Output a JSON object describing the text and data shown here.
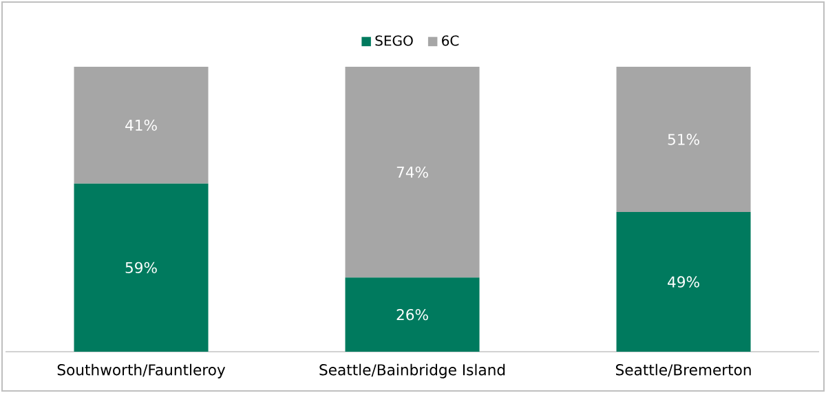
{
  "chart_data": {
    "type": "bar",
    "stacked": true,
    "legend": "top",
    "categories": [
      "Southworth/Fauntleroy",
      "Seattle/Bainbridge Island",
      "Seattle/Bremerton"
    ],
    "series": [
      {
        "name": "SEGO",
        "color": "#007a5e",
        "values": [
          59,
          26,
          49
        ],
        "value_labels": [
          "59%",
          "26%",
          "49%"
        ]
      },
      {
        "name": "6C",
        "color": "#a6a6a6",
        "values": [
          41,
          74,
          51
        ],
        "value_labels": [
          "41%",
          "74%",
          "51%"
        ]
      }
    ]
  }
}
